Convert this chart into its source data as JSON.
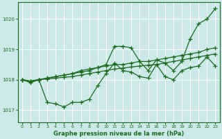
{
  "xlabel": "Graphe pression niveau de la mer (hPa)",
  "bg_color": "#cce8e8",
  "grid_color": "#ffffff",
  "line_color": "#1a6b1a",
  "marker": "+",
  "markersize": 4,
  "linewidth": 0.9,
  "xlim": [
    -0.5,
    23.5
  ],
  "ylim": [
    1016.6,
    1020.55
  ],
  "yticks": [
    1017,
    1018,
    1019,
    1020
  ],
  "xticks": [
    0,
    1,
    2,
    3,
    4,
    5,
    6,
    7,
    8,
    9,
    10,
    11,
    12,
    13,
    14,
    15,
    16,
    17,
    18,
    19,
    20,
    21,
    22,
    23
  ],
  "series": [
    {
      "x": [
        0,
        1,
        2,
        3,
        4,
        5,
        6,
        7,
        8,
        9,
        10,
        11,
        12,
        13,
        14,
        15,
        16,
        17,
        18,
        19,
        20,
        21,
        22,
        23
      ],
      "y": [
        1018.0,
        1017.95,
        1018.0,
        1018.05,
        1018.1,
        1018.15,
        1018.2,
        1018.25,
        1018.3,
        1018.4,
        1018.5,
        1019.1,
        1019.1,
        1019.05,
        1018.6,
        1018.3,
        1018.65,
        1018.55,
        1018.3,
        1018.6,
        1019.35,
        1019.85,
        1020.0,
        1020.35
      ]
    },
    {
      "x": [
        0,
        1,
        2,
        3,
        4,
        5,
        6,
        7,
        8,
        9,
        10,
        11,
        12,
        13,
        14,
        15,
        16,
        17,
        18,
        19,
        20,
        21,
        22,
        23
      ],
      "y": [
        1018.0,
        1017.9,
        1018.0,
        1017.25,
        1017.2,
        1017.1,
        1017.25,
        1017.25,
        1017.35,
        1017.8,
        1018.2,
        1018.55,
        1018.3,
        1018.25,
        1018.1,
        1018.05,
        1018.5,
        1018.1,
        1018.0,
        1018.3,
        1018.4,
        1018.45,
        1018.75,
        1018.45
      ]
    },
    {
      "x": [
        0,
        1,
        2,
        3,
        4,
        5,
        6,
        7,
        8,
        9,
        10,
        11,
        12,
        13,
        14,
        15,
        16,
        17,
        18,
        19,
        20,
        21,
        22,
        23
      ],
      "y": [
        1018.0,
        1017.95,
        1018.0,
        1018.05,
        1018.1,
        1018.15,
        1018.2,
        1018.3,
        1018.35,
        1018.4,
        1018.45,
        1018.5,
        1018.5,
        1018.55,
        1018.6,
        1018.6,
        1018.65,
        1018.7,
        1018.75,
        1018.8,
        1018.85,
        1018.9,
        1019.0,
        1019.05
      ]
    },
    {
      "x": [
        0,
        1,
        2,
        3,
        4,
        5,
        6,
        7,
        8,
        9,
        10,
        11,
        12,
        13,
        14,
        15,
        16,
        17,
        18,
        19,
        20,
        21,
        22,
        23
      ],
      "y": [
        1018.0,
        1017.95,
        1018.0,
        1018.02,
        1018.05,
        1018.08,
        1018.1,
        1018.15,
        1018.2,
        1018.25,
        1018.3,
        1018.35,
        1018.38,
        1018.42,
        1018.45,
        1018.48,
        1018.5,
        1018.55,
        1018.6,
        1018.65,
        1018.7,
        1018.75,
        1018.8,
        1018.85
      ]
    }
  ]
}
